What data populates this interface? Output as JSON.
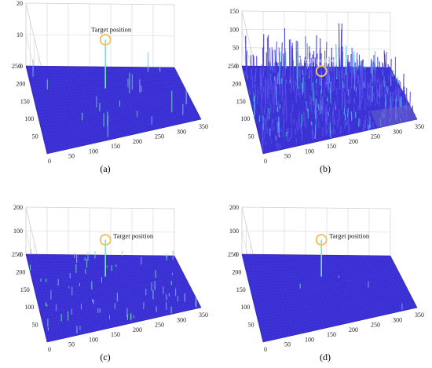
{
  "chart_data": [
    {
      "type": "surface",
      "caption": "(a)",
      "annotation": "Target position",
      "x_ticks": [
        "0",
        "50",
        "100",
        "150",
        "200",
        "250",
        "300",
        "350"
      ],
      "y_ticks": [
        "50",
        "100",
        "150",
        "200",
        "250"
      ],
      "z_ticks": [
        "0",
        "10",
        "20"
      ],
      "zlim": [
        0,
        20
      ],
      "xlim": [
        0,
        350
      ],
      "ylim": [
        0,
        250
      ],
      "target": {
        "x": 175,
        "y": 195
      }
    },
    {
      "type": "surface",
      "caption": "(b)",
      "annotation": "Target position",
      "x_ticks": [
        "0",
        "50",
        "100",
        "150",
        "200",
        "250",
        "300",
        "350"
      ],
      "y_ticks": [
        "50",
        "100",
        "150",
        "200",
        "250"
      ],
      "z_ticks": [
        "0",
        "50",
        "100",
        "150"
      ],
      "zlim": [
        0,
        150
      ],
      "xlim": [
        0,
        350
      ],
      "ylim": [
        0,
        250
      ],
      "target": {
        "x": 175,
        "y": 195
      }
    },
    {
      "type": "surface",
      "caption": "(c)",
      "annotation": "Target position",
      "x_ticks": [
        "0",
        "50",
        "100",
        "150",
        "200",
        "250",
        "300",
        "350"
      ],
      "y_ticks": [
        "50",
        "100",
        "150",
        "200",
        "250"
      ],
      "z_ticks": [
        "0",
        "100",
        "200"
      ],
      "zlim": [
        0,
        200
      ],
      "xlim": [
        0,
        350
      ],
      "ylim": [
        0,
        250
      ],
      "target": {
        "x": 175,
        "y": 195
      }
    },
    {
      "type": "surface",
      "caption": "(d)",
      "annotation": "Target position",
      "x_ticks": [
        "0",
        "50",
        "100",
        "150",
        "200",
        "250",
        "300",
        "350"
      ],
      "y_ticks": [
        "50",
        "100",
        "150",
        "200",
        "250"
      ],
      "z_ticks": [
        "0",
        "100",
        "200"
      ],
      "zlim": [
        0,
        200
      ],
      "xlim": [
        0,
        350
      ],
      "ylim": [
        0,
        250
      ],
      "target": {
        "x": 175,
        "y": 195
      }
    }
  ],
  "colors": {
    "surface": "#3a2fd2",
    "surface_dark": "#2d24a8",
    "grid": "#d4d4d4",
    "annotation_circle": "#f0c26a",
    "annotation_text_dark": "#111111",
    "annotation_text_light": "#ffffff",
    "peak": "#7fe0c8"
  }
}
